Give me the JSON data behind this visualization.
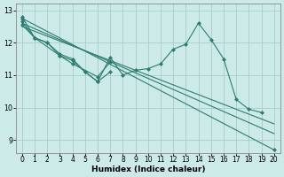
{
  "bg_color": "#cceae8",
  "grid_color": "#aacccc",
  "line_color": "#2d7d6e",
  "xlabel": "Humidex (Indice chaleur)",
  "xlabel_fontsize": 6.5,
  "xtick_fontsize": 5.5,
  "ytick_fontsize": 5.8,
  "xlim": [
    -0.5,
    20.5
  ],
  "ylim": [
    8.6,
    13.2
  ],
  "yticks": [
    9,
    10,
    11,
    12,
    13
  ],
  "xticks": [
    0,
    1,
    2,
    3,
    4,
    5,
    6,
    7,
    8,
    9,
    10,
    11,
    12,
    13,
    14,
    15,
    16,
    17,
    18,
    19,
    20
  ],
  "lines": [
    {
      "x": [
        0,
        1,
        2,
        3,
        4,
        5,
        6,
        7,
        8,
        9,
        10,
        11,
        12,
        13,
        14,
        15,
        16,
        17,
        18,
        19
      ],
      "y": [
        12.8,
        12.15,
        12.0,
        11.65,
        11.5,
        11.1,
        10.8,
        11.55,
        11.0,
        11.15,
        11.2,
        11.35,
        11.8,
        11.95,
        12.6,
        12.1,
        11.5,
        10.25,
        9.95,
        9.85
      ],
      "marker": "D",
      "ms": 2.0,
      "lw": 0.8
    },
    {
      "x": [
        0,
        1,
        2,
        3,
        4,
        5,
        6,
        7
      ],
      "y": [
        12.65,
        12.15,
        12.0,
        11.6,
        11.45,
        11.1,
        10.8,
        11.1
      ],
      "marker": "D",
      "ms": 2.0,
      "lw": 0.8
    },
    {
      "x": [
        0,
        1,
        3,
        4,
        6,
        7
      ],
      "y": [
        12.55,
        12.15,
        11.6,
        11.35,
        10.95,
        11.4
      ],
      "marker": "D",
      "ms": 2.0,
      "lw": 0.8
    },
    {
      "x": [
        0,
        20
      ],
      "y": [
        12.75,
        8.7
      ],
      "marker": "D",
      "ms": 2.0,
      "lw": 0.8
    },
    {
      "x": [
        0,
        20
      ],
      "y": [
        12.6,
        9.2
      ],
      "marker": null,
      "ms": 0,
      "lw": 0.8
    },
    {
      "x": [
        0,
        20
      ],
      "y": [
        12.5,
        9.5
      ],
      "marker": null,
      "ms": 0,
      "lw": 0.8
    }
  ]
}
